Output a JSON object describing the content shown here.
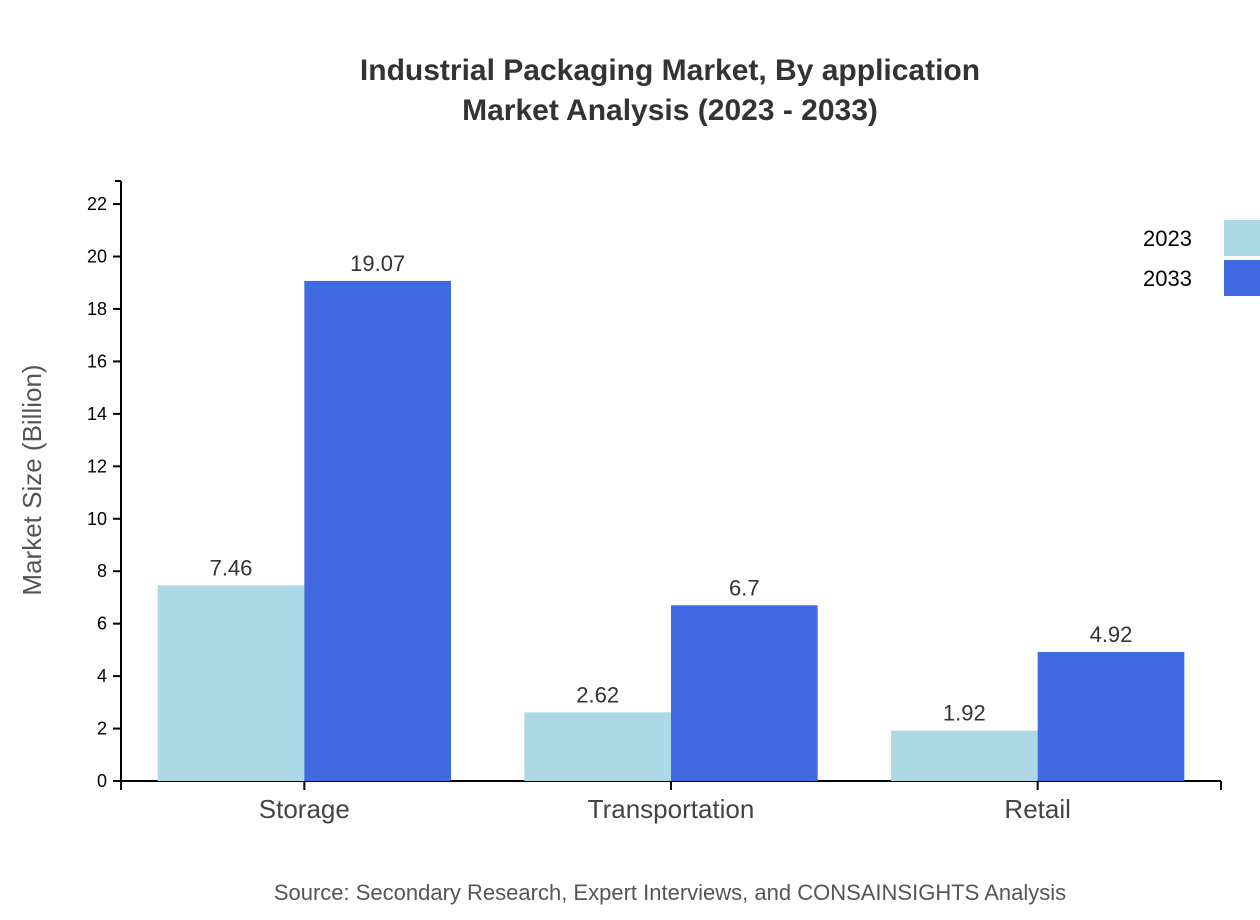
{
  "chart_data": {
    "type": "bar",
    "title": "Industrial Packaging Market, By application",
    "subtitle": "Market Analysis (2023 - 2033)",
    "xlabel": "",
    "ylabel": "Market Size (Billion)",
    "categories": [
      "Storage",
      "Transportation",
      "Retail"
    ],
    "series": [
      {
        "name": "2023",
        "color": "#add8e6",
        "values": [
          7.46,
          2.62,
          1.92
        ],
        "labels": [
          "7.46",
          "2.62",
          "1.92"
        ]
      },
      {
        "name": "2033",
        "color": "#4169e1",
        "values": [
          19.07,
          6.7,
          4.92
        ],
        "labels": [
          "19.07",
          "6.7",
          "4.92"
        ]
      }
    ],
    "ylim": [
      0,
      22.88
    ],
    "yticks": [
      0,
      2,
      4,
      6,
      8,
      10,
      12,
      14,
      16,
      18,
      20,
      22
    ],
    "grid": false,
    "legend": "top-right",
    "source": "Source: Secondary Research, Expert Interviews, and CONSAINSIGHTS Analysis"
  }
}
